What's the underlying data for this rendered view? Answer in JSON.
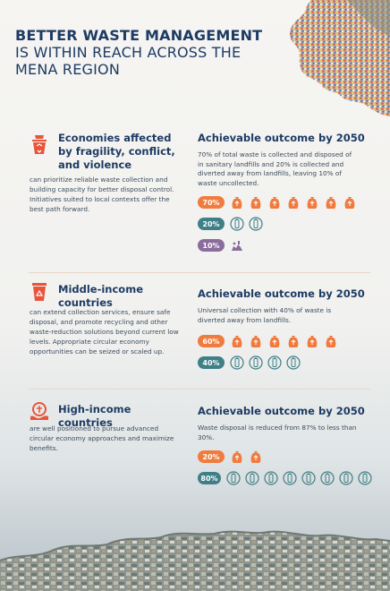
{
  "title": {
    "line1": "BETTER WASTE MANAGEMENT",
    "line2": "IS WITHIN REACH ACROSS THE",
    "line3": "MENA REGION"
  },
  "colors": {
    "orange": "#f07b3f",
    "teal": "#3f7f86",
    "purple": "#8a6d9c",
    "navy": "#1d3b63"
  },
  "sections": [
    {
      "icon": "waste-bin-icon",
      "category": "Economies affected by fragility, conflict, and violence",
      "description": "can prioritize reliable waste collection and building capacity for better disposal control. Initiatives suited to local contexts offer the best path forward.",
      "outcome_title": "Achievable outcome by 2050",
      "outcome_desc": "70% of total waste is collected and disposed of in sanitary landfills and 20% is collected and diverted away from landfills, leaving 10% of waste uncollected.",
      "stats": [
        {
          "label": "70%",
          "color": "orange",
          "icon": "waste-bag-icon",
          "count": 7
        },
        {
          "label": "20%",
          "color": "teal",
          "icon": "recycle-bottle-icon",
          "count": 2
        },
        {
          "label": "10%",
          "color": "purple",
          "icon": "uncollected-waste-icon",
          "count": 1
        }
      ]
    },
    {
      "icon": "recycle-bin-icon",
      "category": "Middle-income countries",
      "description": "can extend collection services, ensure safe disposal, and promote recycling and other waste-reduction solutions beyond current low levels. Appropriate circular economy opportunities can be seized or scaled up.",
      "outcome_title": "Achievable outcome by 2050",
      "outcome_desc": "Universal collection with 40% of waste is diverted away from landfills.",
      "stats": [
        {
          "label": "60%",
          "color": "orange",
          "icon": "waste-bag-icon",
          "count": 6
        },
        {
          "label": "40%",
          "color": "teal",
          "icon": "recycle-bottle-icon",
          "count": 4
        }
      ]
    },
    {
      "icon": "circular-economy-icon",
      "category": "High-income countries",
      "description": "are well positioned to pursue advanced circular economy approaches and maximize benefits.",
      "outcome_title": "Achievable outcome by 2050",
      "outcome_desc": "Waste disposal is reduced from 87% to less than 30%.",
      "stats": [
        {
          "label": "20%",
          "color": "orange",
          "icon": "waste-bag-icon",
          "count": 2
        },
        {
          "label": "80%",
          "color": "teal",
          "icon": "recycle-bottle-icon",
          "count": 8
        }
      ]
    }
  ]
}
